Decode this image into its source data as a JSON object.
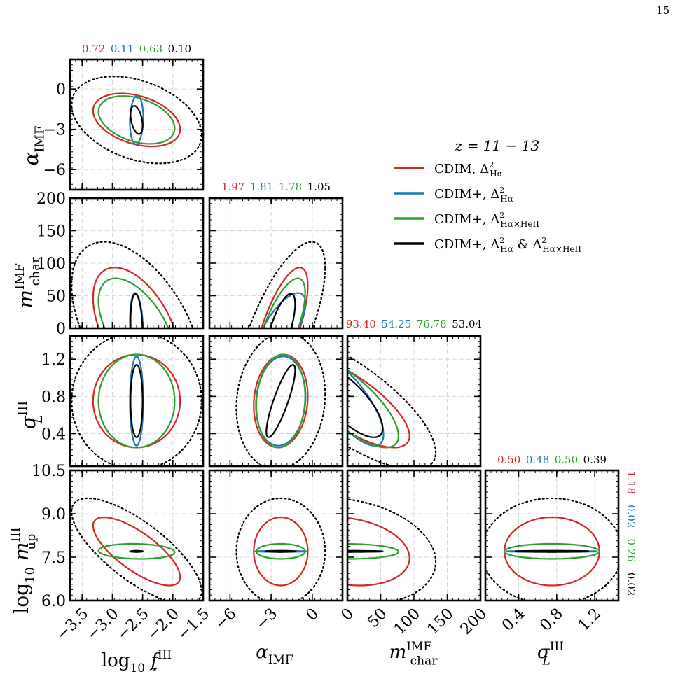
{
  "page_number": "15",
  "colors": {
    "red": "#d62728",
    "blue": "#1f77b4",
    "green": "#2ca02c",
    "black": "#000000",
    "grid": "#d8d8d8"
  },
  "chart_data": {
    "type": "corner-plot",
    "parameters": [
      {
        "key": "fstar",
        "label_base": "log",
        "label_sub": "10",
        "label_var": "f",
        "label_var_sub": "⋆",
        "label_var_sup": "III",
        "range": [
          -3.7,
          -1.5
        ],
        "ticks": [
          -3.5,
          -3.0,
          -2.5,
          -2.0,
          -1.5
        ],
        "tick_labels": [
          "−3.5",
          "−3.0",
          "−2.5",
          "−2.0",
          "−1.5"
        ]
      },
      {
        "key": "alpha",
        "label_var": "α",
        "label_var_sub": "IMF",
        "range": [
          -7.5,
          2.2
        ],
        "ticks": [
          -6,
          -3,
          0
        ],
        "tick_labels": [
          "−6",
          "−3",
          "0"
        ]
      },
      {
        "key": "mchar",
        "label_var": "m",
        "label_var_sub": "char",
        "label_var_sup": "IMF",
        "range": [
          0,
          200
        ],
        "ticks": [
          0,
          50,
          100,
          150,
          200
        ],
        "tick_labels": [
          "0",
          "50",
          "100",
          "150",
          "200"
        ]
      },
      {
        "key": "sigma",
        "label_var": "σ",
        "label_var_sub": "L",
        "label_var_sup": "III",
        "range": [
          0.05,
          1.45
        ],
        "ticks": [
          0.4,
          0.8,
          1.2
        ],
        "tick_labels": [
          "0.4",
          "0.8",
          "1.2"
        ]
      },
      {
        "key": "mup",
        "label_base": "log",
        "label_sub": "10",
        "label_var": "m",
        "label_var_sub": "up",
        "label_var_sup": "III",
        "range": [
          6.0,
          10.5
        ],
        "ticks": [
          6.0,
          7.5,
          9.0,
          10.5
        ],
        "tick_labels": [
          "6.0",
          "7.5",
          "9.0",
          "10.5"
        ]
      }
    ],
    "series": [
      {
        "name": "CDIM, Δ²_Hα",
        "legend_main": "CDIM, Δ",
        "legend_sub": "Hα",
        "legend_extra": "",
        "legend_extra_sub": "",
        "color": "red",
        "style": "solid",
        "center": [
          -2.6,
          -2.3,
          0,
          0.75,
          7.7
        ],
        "sigma": [
          0.72,
          1.97,
          93.4,
          0.5,
          1.18
        ]
      },
      {
        "name": "CDIM+, Δ²_Hα",
        "legend_main": "CDIM+, Δ",
        "legend_sub": "Hα",
        "legend_extra": "",
        "legend_extra_sub": "",
        "color": "blue",
        "style": "solid",
        "center": [
          -2.6,
          -2.3,
          0,
          0.75,
          7.7
        ],
        "sigma": [
          0.11,
          1.81,
          54.25,
          0.48,
          0.02
        ]
      },
      {
        "name": "CDIM+, Δ²_Hα×HeII",
        "legend_main": "CDIM+, Δ",
        "legend_sub": "Hα×HeII",
        "legend_extra": "",
        "legend_extra_sub": "",
        "color": "green",
        "style": "solid",
        "center": [
          -2.6,
          -2.3,
          0,
          0.75,
          7.7
        ],
        "sigma": [
          0.63,
          1.78,
          76.78,
          0.5,
          0.26
        ]
      },
      {
        "name": "CDIM+, Δ²_Hα & Δ²_Hα×HeII",
        "legend_main": "CDIM+, Δ",
        "legend_sub": "Hα",
        "legend_extra": " & Δ",
        "legend_extra_sub": "Hα×HeII",
        "color": "black",
        "style": "solid",
        "center": [
          -2.6,
          -2.3,
          0,
          0.75,
          7.7
        ],
        "sigma": [
          0.1,
          1.05,
          53.04,
          0.39,
          0.02
        ]
      }
    ],
    "top_labels": [
      [
        "0.72",
        "0.11",
        "0.63",
        "0.10"
      ],
      [
        "1.97",
        "1.81",
        "1.78",
        "1.05"
      ],
      [
        "93.40",
        "54.25",
        "76.78",
        "53.04"
      ],
      [
        "0.50",
        "0.48",
        "0.50",
        "0.39"
      ],
      [
        "1.18",
        "0.02",
        "0.26",
        "0.02"
      ]
    ],
    "legend": {
      "title": "z = 11 − 13",
      "placement": "upper-right"
    },
    "grid": true
  }
}
